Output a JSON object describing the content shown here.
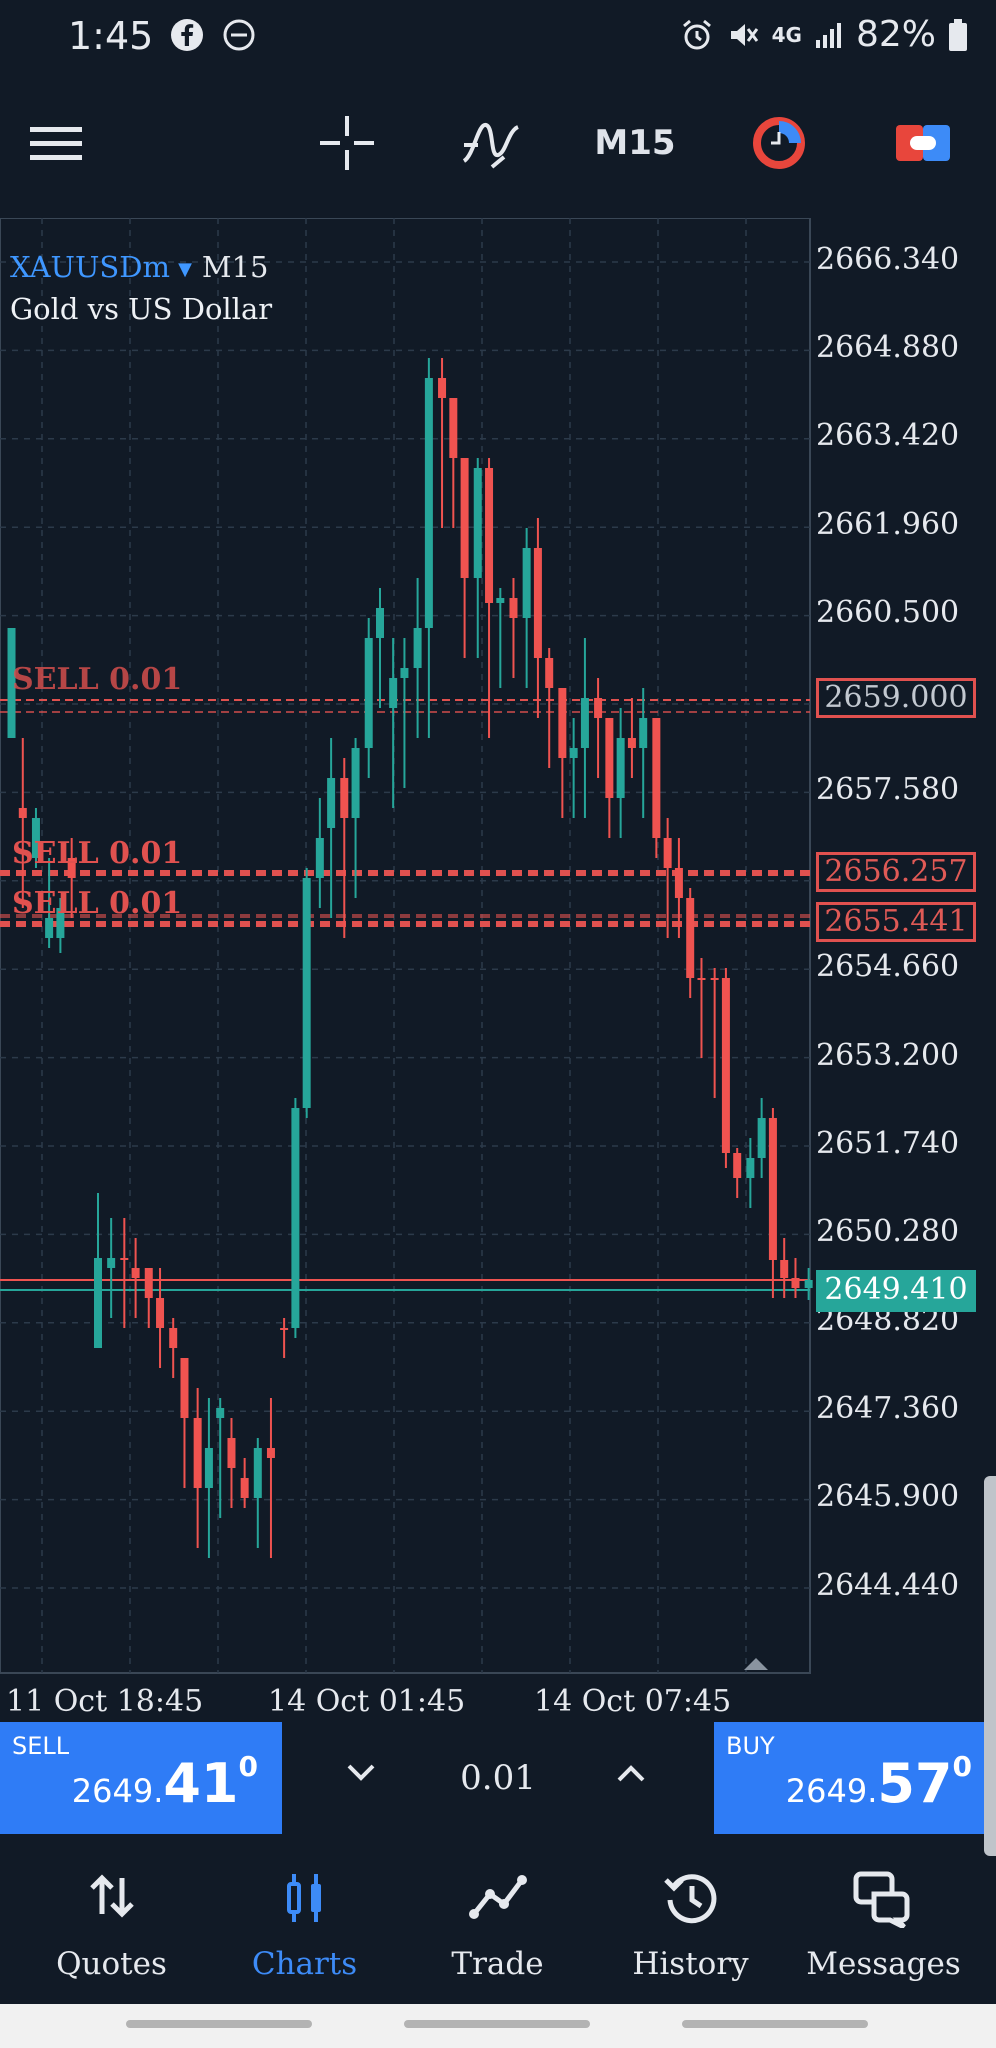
{
  "status_bar": {
    "time": "1:45",
    "network": "4G",
    "battery": "82%"
  },
  "toolbar": {
    "timeframe": "M15",
    "icons": [
      "menu-icon",
      "crosshair-icon",
      "indicators-icon",
      "timeframe-label",
      "one-click-trading-icon",
      "trade-toggle-icon"
    ]
  },
  "chart": {
    "symbol": "XAUUSDm",
    "timeframe": "M15",
    "description": "Gold vs US Dollar",
    "price_scale": [
      "2666.340",
      "2664.880",
      "2663.420",
      "2661.960",
      "2660.500",
      "2657.580",
      "2654.660",
      "2653.200",
      "2651.740",
      "2650.280",
      "2648.820",
      "2647.360",
      "2645.900",
      "2644.440"
    ],
    "time_scale": [
      "11 Oct 18:45",
      "14 Oct 01:45",
      "14 Oct 07:45"
    ],
    "orders": [
      {
        "label": "SELL 0.01",
        "price": "2659.000"
      },
      {
        "label": "SELL 0.01",
        "price": "2656.257"
      },
      {
        "label": "SELL 0.01",
        "price": "2655.441"
      }
    ],
    "bid_price": "2649.410",
    "colors": {
      "up": "#26a69a",
      "down": "#ef5350",
      "order": "#e0514f",
      "grid": "#2c3a4a",
      "background": "#111a26"
    }
  },
  "trade_bar": {
    "sell": {
      "label": "SELL",
      "price_prefix": "2649.",
      "price_big": "41",
      "price_sup": "0"
    },
    "buy": {
      "label": "BUY",
      "price_prefix": "2649.",
      "price_big": "57",
      "price_sup": "0"
    },
    "volume": "0.01"
  },
  "bottom_nav": {
    "items": [
      {
        "label": "Quotes",
        "icon": "quotes-icon"
      },
      {
        "label": "Charts",
        "icon": "charts-icon",
        "active": true
      },
      {
        "label": "Trade",
        "icon": "trade-icon"
      },
      {
        "label": "History",
        "icon": "history-icon"
      },
      {
        "label": "Messages",
        "icon": "messages-icon"
      }
    ],
    "active_color": "#3d8bf7"
  }
}
